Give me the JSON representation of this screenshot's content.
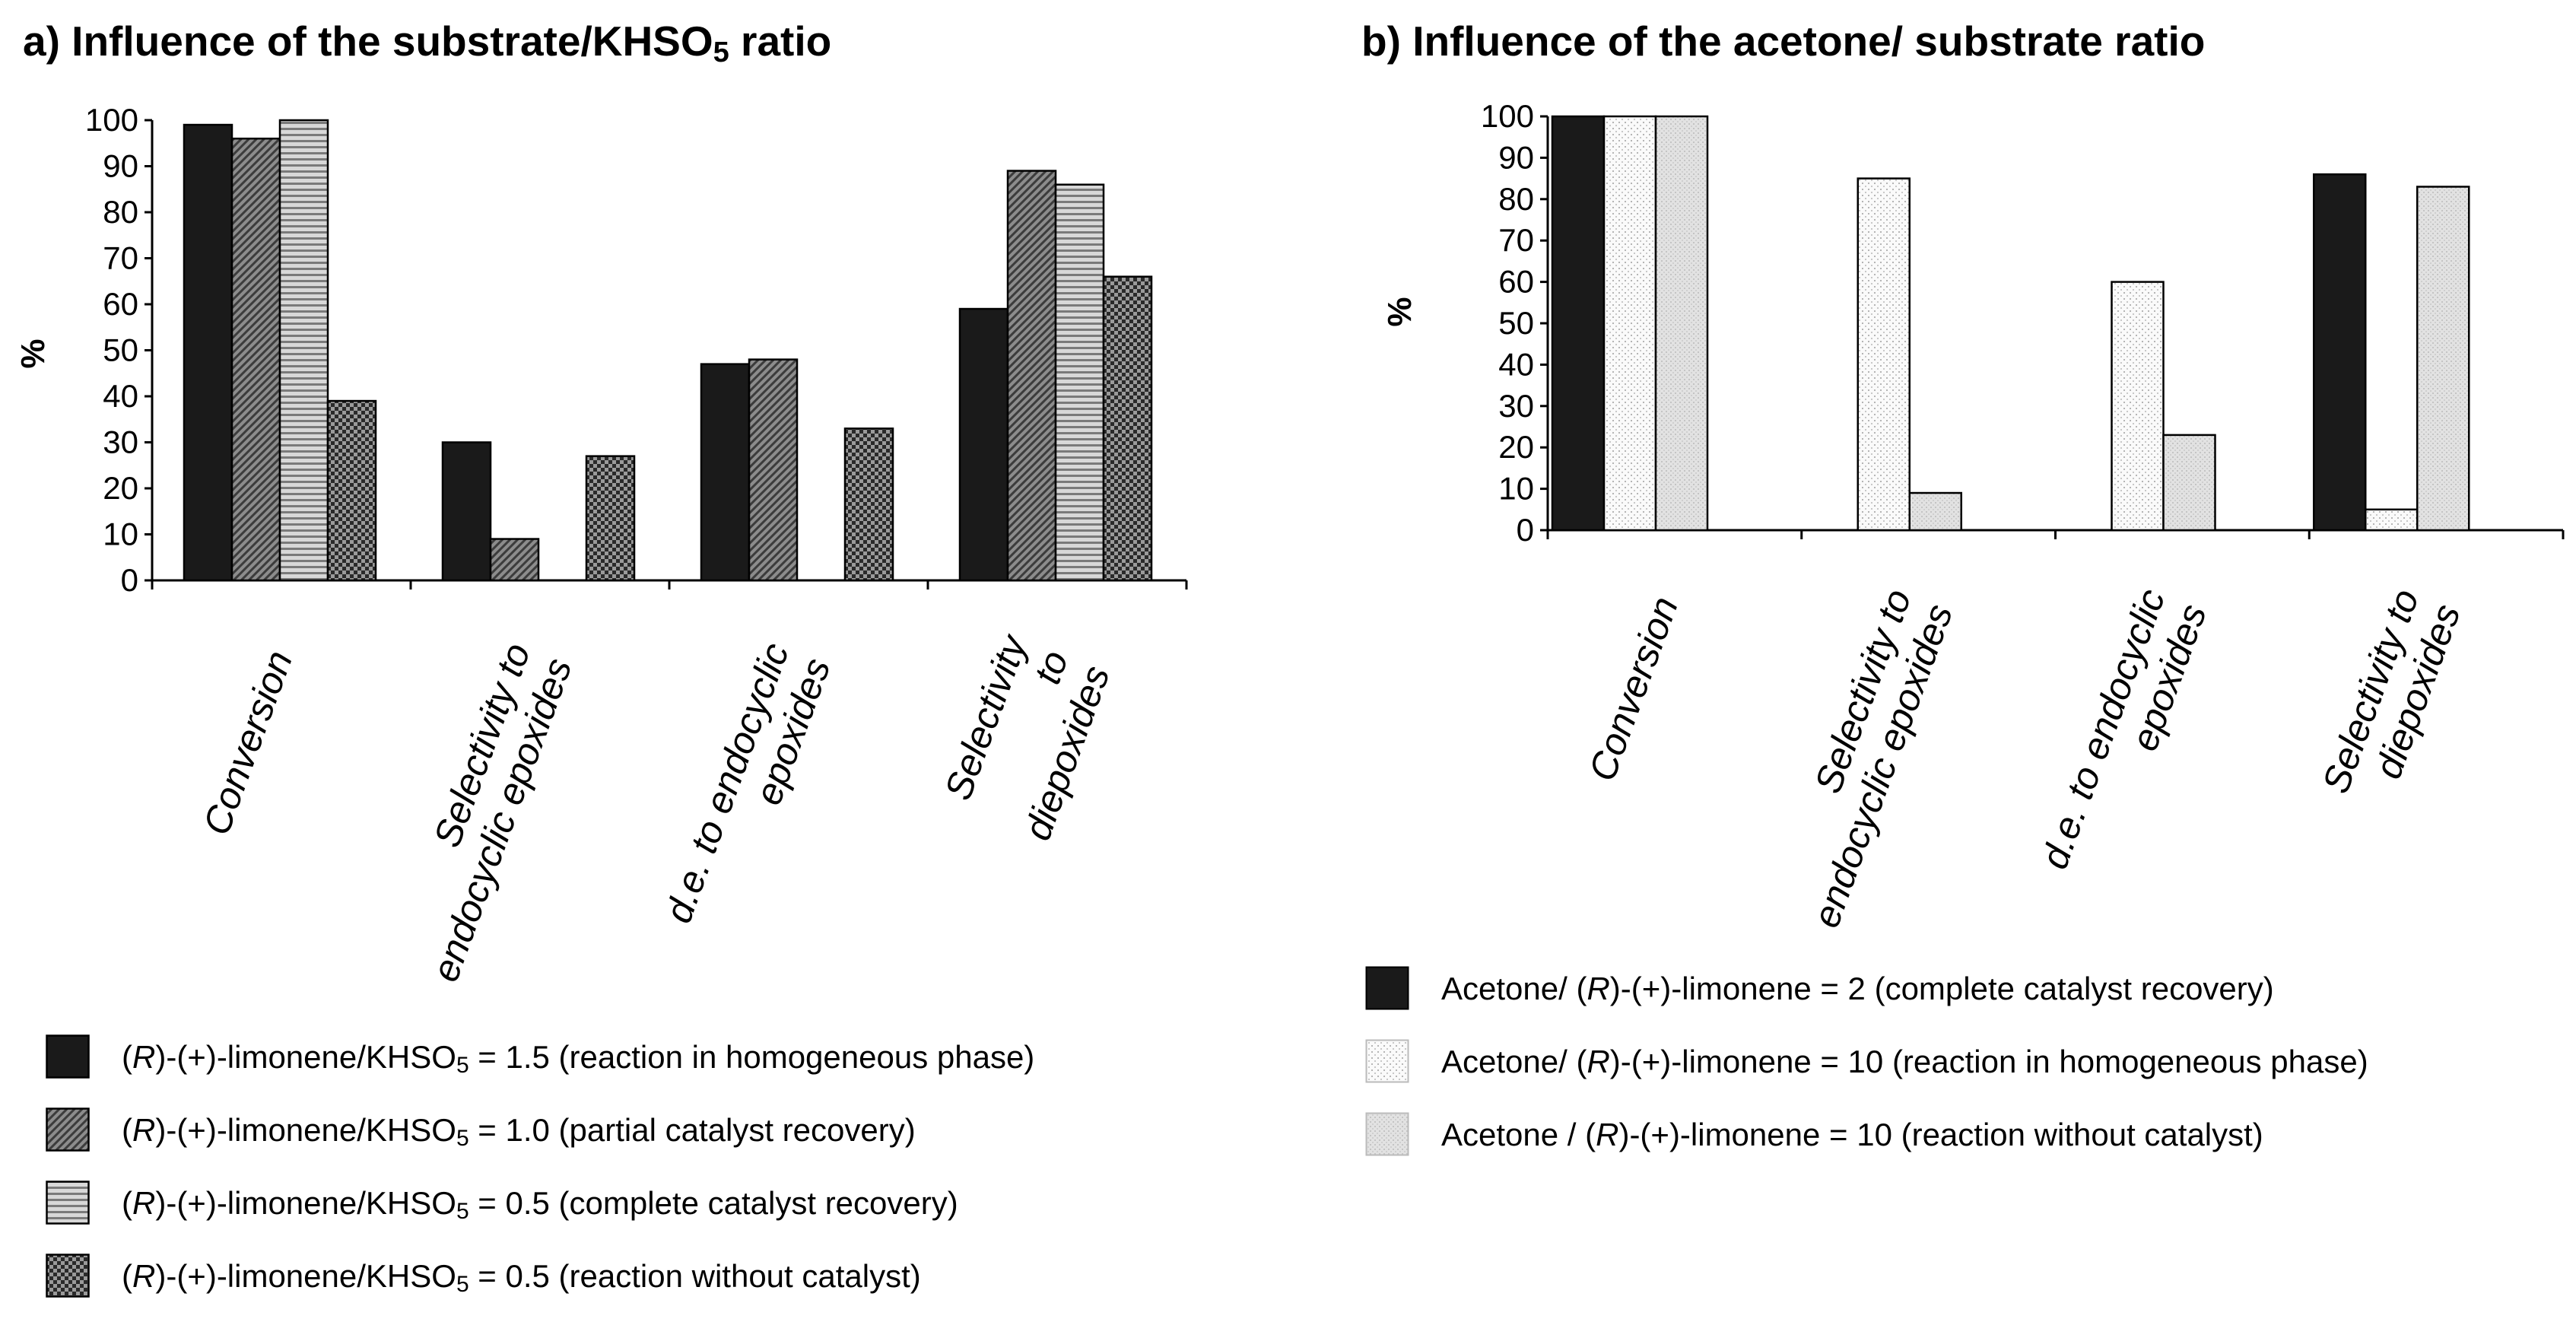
{
  "panel_a": {
    "title_main": "a) Influence of the substrate/KHSO",
    "title_sub": "5",
    "title_end": " ratio",
    "legend": [
      {
        "prefix": "(",
        "italic": "R",
        "mid": ")-(+)-limonene/KHSO",
        "sub": "5",
        "suffix": " = 1.5  (reaction in homogeneous  phase)",
        "pattern": "solid-black"
      },
      {
        "prefix": "(",
        "italic": "R",
        "mid": ")-(+)-limonene/KHSO",
        "sub": "5",
        "suffix": " = 1.0 (partial catalyst recovery)",
        "pattern": "diagonal-grey"
      },
      {
        "prefix": "(",
        "italic": "R",
        "mid": ")-(+)-limonene/KHSO",
        "sub": "5",
        "suffix": " = 0.5 (complete  catalyst recovery)",
        "pattern": "horizontal-lines"
      },
      {
        "prefix": "(",
        "italic": "R",
        "mid": ")-(+)-limonene/KHSO",
        "sub": "5",
        "suffix": " = 0.5 (reaction without catalyst)",
        "pattern": "checker-dark"
      }
    ]
  },
  "panel_b": {
    "title": "b) Influence of the acetone/ substrate ratio",
    "legend": [
      {
        "prefix": "Acetone/  (",
        "italic": "R",
        "suffix": ")-(+)-limonene = 2 (complete catalyst recovery)",
        "pattern": "solid-black"
      },
      {
        "prefix": "Acetone/  (",
        "italic": "R",
        "suffix": ")-(+)-limonene = 10 (reaction in homogeneous  phase)",
        "pattern": "vertical-dots"
      },
      {
        "prefix": "Acetone  / (",
        "italic": "R",
        "suffix": ")-(+)-limonene = 10 (reaction without catalyst)",
        "pattern": "light-grey"
      }
    ]
  },
  "chart_data": [
    {
      "type": "bar",
      "title": "a) Influence of the substrate/KHSO5 ratio",
      "ylabel": "%",
      "xlabel": "",
      "ylim": [
        0,
        100
      ],
      "yticks": [
        0,
        10,
        20,
        30,
        40,
        50,
        60,
        70,
        80,
        90,
        100
      ],
      "grid": false,
      "categories": [
        "Conversion",
        "Selectivity to endocyclic epoxides",
        "d.e. to endocyclic epoxides",
        "Selectivity to diepoxides"
      ],
      "category_lines": [
        [
          "Conversion"
        ],
        [
          "Selectivity to",
          "endocyclic epoxides"
        ],
        [
          "d.e. to endocyclic",
          "epoxides"
        ],
        [
          "Selectivity",
          "to",
          "diepoxides"
        ]
      ],
      "series": [
        {
          "name": "(R)-(+)-limonene/KHSO5 = 1.5 (reaction in homogeneous phase)",
          "values": [
            99,
            30,
            47,
            59
          ]
        },
        {
          "name": "(R)-(+)-limonene/KHSO5 = 1.0 (partial catalyst recovery)",
          "values": [
            96,
            9,
            48,
            89
          ]
        },
        {
          "name": "(R)-(+)-limonene/KHSO5 = 0.5 (complete catalyst recovery)",
          "values": [
            100,
            0,
            0,
            86
          ]
        },
        {
          "name": "(R)-(+)-limonene/KHSO5 = 0.5 (reaction without catalyst)",
          "values": [
            39,
            27,
            33,
            66
          ]
        }
      ],
      "legend_position": "bottom"
    },
    {
      "type": "bar",
      "title": "b) Influence of the acetone/ substrate ratio",
      "ylabel": "%",
      "xlabel": "",
      "ylim": [
        0,
        100
      ],
      "yticks": [
        0,
        10,
        20,
        30,
        40,
        50,
        60,
        70,
        80,
        90,
        100
      ],
      "grid": false,
      "categories": [
        "Conversion",
        "Selectivity to endocyclic epoxides",
        "d.e. to endocyclic epoxides",
        "Selectivity to diepoxides"
      ],
      "category_lines": [
        [
          "Conversion"
        ],
        [
          "Selectivity to",
          "endocyclic epoxides"
        ],
        [
          "d.e. to endocyclic",
          "epoxides"
        ],
        [
          "Selectivity to",
          "diepoxides"
        ]
      ],
      "series": [
        {
          "name": "Acetone/ (R)-(+)-limonene = 2 (complete catalyst recovery)",
          "values": [
            100,
            0,
            0,
            86
          ]
        },
        {
          "name": "Acetone/ (R)-(+)-limonene = 10 (reaction in homogeneous phase)",
          "values": [
            100,
            85,
            60,
            5
          ]
        },
        {
          "name": "Acetone / (R)-(+)-limonene = 10 (reaction without catalyst)",
          "values": [
            100,
            9,
            23,
            83
          ]
        }
      ],
      "legend_position": "bottom"
    }
  ]
}
